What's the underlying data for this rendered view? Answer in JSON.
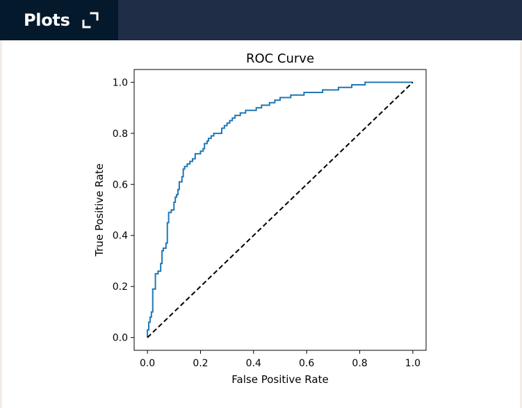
{
  "header": {
    "tab_label": "Plots",
    "expand_icon": "expand-icon",
    "colors": {
      "bar": "#1f2e46",
      "tab": "#05192d",
      "text": "#ffffff"
    }
  },
  "chart_data": {
    "type": "line",
    "title": "ROC Curve",
    "xlabel": "False Positive Rate",
    "ylabel": "True Positive Rate",
    "xlim": [
      -0.05,
      1.05
    ],
    "ylim": [
      -0.05,
      1.05
    ],
    "xticks": [
      0.0,
      0.2,
      0.4,
      0.6,
      0.8,
      1.0
    ],
    "yticks": [
      0.0,
      0.2,
      0.4,
      0.6,
      0.8,
      1.0
    ],
    "xtick_labels": [
      "0.0",
      "0.2",
      "0.4",
      "0.6",
      "0.8",
      "1.0"
    ],
    "ytick_labels": [
      "0.0",
      "0.2",
      "0.4",
      "0.6",
      "0.8",
      "1.0"
    ],
    "grid": false,
    "series": [
      {
        "color": "#1f77b4",
        "linestyle": "solid",
        "step": true,
        "x": [
          0.0,
          0.0,
          0.005,
          0.005,
          0.01,
          0.01,
          0.015,
          0.015,
          0.02,
          0.02,
          0.03,
          0.03,
          0.04,
          0.04,
          0.05,
          0.05,
          0.055,
          0.055,
          0.06,
          0.06,
          0.07,
          0.07,
          0.075,
          0.075,
          0.08,
          0.08,
          0.09,
          0.09,
          0.1,
          0.1,
          0.105,
          0.105,
          0.11,
          0.11,
          0.115,
          0.115,
          0.12,
          0.12,
          0.13,
          0.13,
          0.135,
          0.135,
          0.14,
          0.14,
          0.15,
          0.15,
          0.16,
          0.16,
          0.17,
          0.17,
          0.18,
          0.18,
          0.2,
          0.2,
          0.21,
          0.21,
          0.215,
          0.215,
          0.225,
          0.225,
          0.23,
          0.23,
          0.24,
          0.24,
          0.25,
          0.25,
          0.28,
          0.28,
          0.29,
          0.29,
          0.3,
          0.3,
          0.31,
          0.31,
          0.32,
          0.32,
          0.33,
          0.33,
          0.35,
          0.35,
          0.37,
          0.37,
          0.41,
          0.41,
          0.43,
          0.43,
          0.46,
          0.46,
          0.48,
          0.48,
          0.5,
          0.5,
          0.54,
          0.54,
          0.59,
          0.59,
          0.66,
          0.66,
          0.72,
          0.72,
          0.77,
          0.77,
          0.82,
          0.82,
          1.0
        ],
        "y": [
          0.0,
          0.03,
          0.03,
          0.06,
          0.06,
          0.08,
          0.08,
          0.1,
          0.1,
          0.19,
          0.19,
          0.25,
          0.25,
          0.26,
          0.26,
          0.29,
          0.29,
          0.34,
          0.34,
          0.35,
          0.35,
          0.37,
          0.37,
          0.45,
          0.45,
          0.49,
          0.49,
          0.5,
          0.5,
          0.53,
          0.53,
          0.55,
          0.55,
          0.56,
          0.56,
          0.58,
          0.58,
          0.61,
          0.61,
          0.63,
          0.63,
          0.66,
          0.66,
          0.67,
          0.67,
          0.68,
          0.68,
          0.69,
          0.69,
          0.7,
          0.7,
          0.72,
          0.72,
          0.73,
          0.73,
          0.74,
          0.74,
          0.76,
          0.76,
          0.77,
          0.77,
          0.78,
          0.78,
          0.79,
          0.79,
          0.8,
          0.8,
          0.82,
          0.82,
          0.83,
          0.83,
          0.84,
          0.84,
          0.85,
          0.85,
          0.86,
          0.86,
          0.87,
          0.87,
          0.88,
          0.88,
          0.89,
          0.89,
          0.9,
          0.9,
          0.91,
          0.91,
          0.92,
          0.92,
          0.93,
          0.93,
          0.94,
          0.94,
          0.95,
          0.95,
          0.96,
          0.96,
          0.97,
          0.97,
          0.98,
          0.98,
          0.99,
          0.99,
          1.0,
          1.0
        ]
      },
      {
        "color": "#000000",
        "linestyle": "dashed",
        "x": [
          0.0,
          1.0
        ],
        "y": [
          0.0,
          1.0
        ]
      }
    ]
  }
}
